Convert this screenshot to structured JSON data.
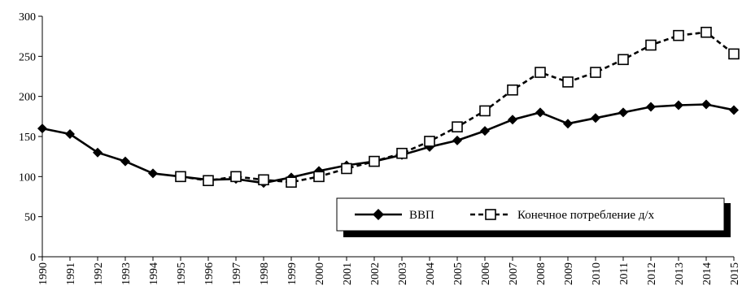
{
  "chart_data": {
    "type": "line",
    "x": [
      "1990",
      "1991",
      "1992",
      "1993",
      "1994",
      "1995",
      "1996",
      "1997",
      "1998",
      "1999",
      "2000",
      "2001",
      "2002",
      "2003",
      "2004",
      "2005",
      "2006",
      "2007",
      "2008",
      "2009",
      "2010",
      "2011",
      "2012",
      "2013",
      "2014",
      "2015"
    ],
    "ylim": [
      0,
      300
    ],
    "yticks": [
      0,
      50,
      100,
      150,
      200,
      250,
      300
    ],
    "grid": false,
    "legend_position": "bottom-right",
    "series": [
      {
        "name": "ВВП",
        "style": "solid",
        "marker": "diamond-filled",
        "color": "#000000",
        "values": [
          160,
          153,
          130,
          119,
          104,
          100,
          96,
          97,
          92,
          99,
          107,
          114,
          119,
          127,
          137,
          145,
          157,
          171,
          180,
          166,
          173,
          180,
          187,
          189,
          190,
          183
        ]
      },
      {
        "name": "Конечное потребление д/х",
        "style": "dashed",
        "marker": "square-open",
        "color": "#000000",
        "values": [
          null,
          null,
          null,
          null,
          null,
          100,
          95,
          100,
          96,
          93,
          100,
          110,
          119,
          129,
          144,
          162,
          182,
          208,
          230,
          218,
          230,
          246,
          264,
          276,
          280,
          253
        ]
      }
    ]
  }
}
